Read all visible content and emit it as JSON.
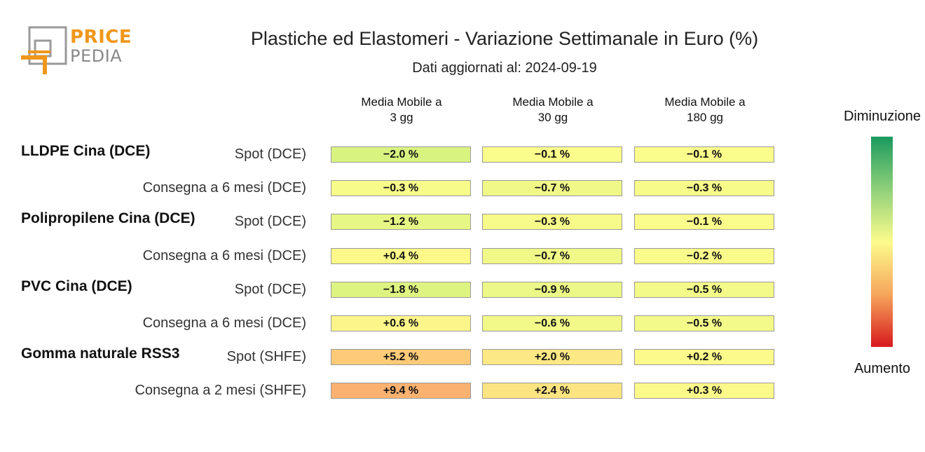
{
  "logo": {
    "line1": "PRICE",
    "line2": "PEDIA"
  },
  "chart_data": {
    "type": "heatmap",
    "title": "Plastiche ed Elastomeri - Variazione Settimanale in Euro (%)",
    "subtitle": "Dati aggiornati al: 2024-09-19",
    "columns": [
      "Media Mobile a\n3 gg",
      "Media Mobile a\n30 gg",
      "Media Mobile a\n180 gg"
    ],
    "groups": [
      {
        "name": "LLDPE Cina (DCE)",
        "rows": [
          {
            "label": "Spot (DCE)",
            "values": [
              -2.0,
              -0.1,
              -0.1
            ],
            "display": [
              "-2.0 %",
              "-0.1 %",
              "-0.1 %"
            ]
          },
          {
            "label": "Consegna a 6 mesi (DCE)",
            "values": [
              -0.3,
              -0.7,
              -0.3
            ],
            "display": [
              "-0.3 %",
              "-0.7 %",
              "-0.3 %"
            ]
          }
        ]
      },
      {
        "name": "Polipropilene Cina (DCE)",
        "rows": [
          {
            "label": "Spot (DCE)",
            "values": [
              -1.2,
              -0.3,
              -0.1
            ],
            "display": [
              "-1.2 %",
              "-0.3 %",
              "-0.1 %"
            ]
          },
          {
            "label": "Consegna a 6 mesi (DCE)",
            "values": [
              0.4,
              -0.7,
              -0.2
            ],
            "display": [
              "+0.4 %",
              "-0.7 %",
              "-0.2 %"
            ]
          }
        ]
      },
      {
        "name": "PVC Cina (DCE)",
        "rows": [
          {
            "label": "Spot (DCE)",
            "values": [
              -1.8,
              -0.9,
              -0.5
            ],
            "display": [
              "-1.8 %",
              "-0.9 %",
              "-0.5 %"
            ]
          },
          {
            "label": "Consegna a 6 mesi (DCE)",
            "values": [
              0.6,
              -0.6,
              -0.5
            ],
            "display": [
              "+0.6 %",
              "-0.6 %",
              "-0.5 %"
            ]
          }
        ]
      },
      {
        "name": "Gomma naturale RSS3",
        "rows": [
          {
            "label": "Spot (SHFE)",
            "values": [
              5.2,
              2.0,
              0.2
            ],
            "display": [
              "+5.2 %",
              "+2.0 %",
              "+0.2 %"
            ]
          },
          {
            "label": "Consegna a 2 mesi (SHFE)",
            "values": [
              9.4,
              2.4,
              0.3
            ],
            "display": [
              "+9.4 %",
              "+2.4 %",
              "+0.3 %"
            ]
          }
        ]
      }
    ],
    "legend": {
      "top": "Diminuzione",
      "bottom": "Aumento"
    },
    "colors": {
      "decrease": "#1a9a5e",
      "neutral": "#fcfc8c",
      "increase": "#d7191c"
    }
  }
}
